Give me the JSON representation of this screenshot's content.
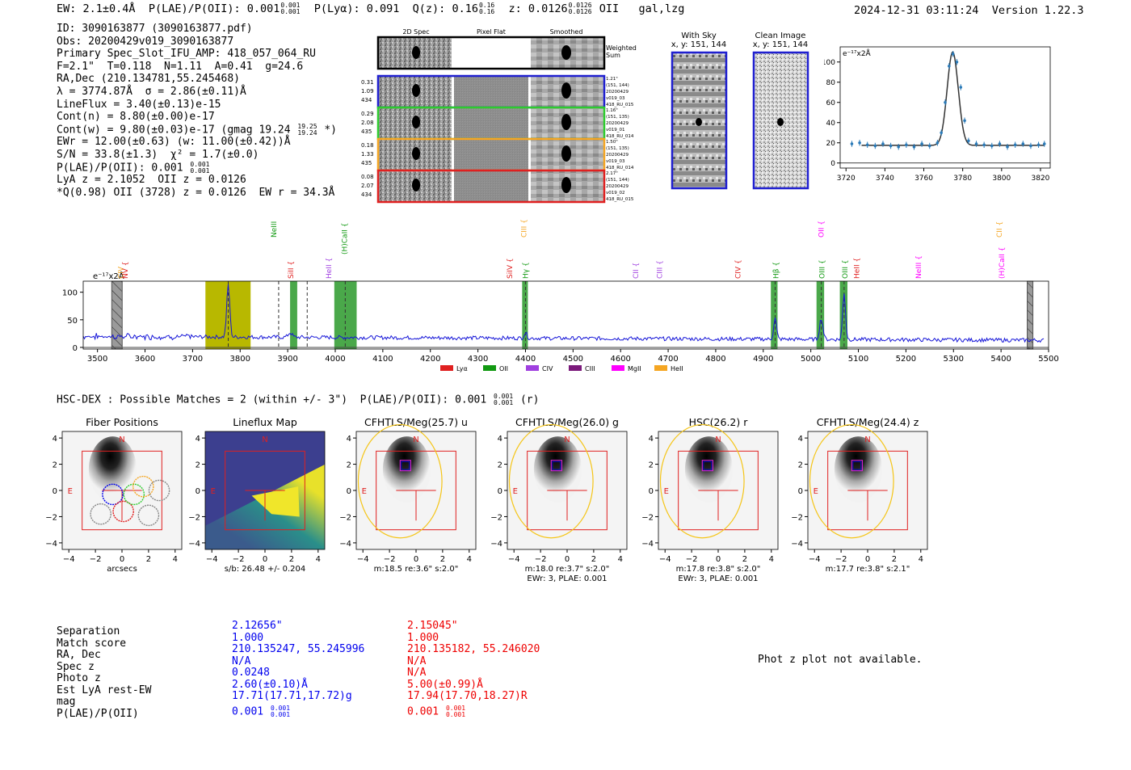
{
  "header": {
    "ew": "EW: 2.1±0.4Å",
    "plae_label": "P(LAE)/P(OII): 0.001",
    "plae_hi": "0.001",
    "plae_lo": "0.001",
    "plya": "P(Lyα): 0.091",
    "qz_label": "Q(z): 0.16",
    "qz_hi": "0.16",
    "qz_lo": "0.16",
    "z_label": "z: 0.0126",
    "z_hi": "0.0126",
    "z_lo": "0.0126",
    "z_line": "OII",
    "tags": "gal,lzg",
    "timestamp": "2024-12-31 03:11:24",
    "version": "Version 1.22.3"
  },
  "info": {
    "id": "ID: 3090163877 (3090163877.pdf)",
    "obs": "Obs: 20200429v019_3090163877",
    "slot": "Primary Spec_Slot_IFU_AMP: 418_057_064_RU",
    "fwhm": "F=2.1\"  T=0.118  N=1.11  A=0.41  g=24.6",
    "radec": "RA,Dec (210.134781,55.245468)",
    "lambda": "λ = 3774.87Å  σ = 2.86(±0.11)Å",
    "lineflux": "LineFlux = 3.40(±0.13)e-15",
    "contn": "Cont(n) = 8.80(±0.00)e-17",
    "contw": "Cont(w) = 9.80(±0.03)e-17 (gmag 19.24",
    "contw_hi": "19.25",
    "contw_lo": "19.24",
    "contw_end": "*)",
    "ewr": "EWr = 12.00(±0.63) (w: 11.00(±0.42))Å",
    "sn": "S/N = 33.8(±1.3)  χ² = 1.7(±0.0)",
    "plae": "P(LAE)/P(OII): 0.001",
    "plae_hi": "0.001",
    "plae_lo": "0.001",
    "lya": "LyA z = 2.1052  OII z = 0.0126",
    "q": "*Q(0.98) OII (3728) z = 0.0126  EW r = 34.3Å"
  },
  "cutouts": {
    "col_titles": [
      "2D Spec",
      "Pixel Flat",
      "Smoothed"
    ],
    "weighted_sum": "Weighted Sum",
    "rows": [
      {
        "left": [
          "0.31",
          "1.09",
          "434"
        ],
        "right": [
          "1.21\"",
          "(151, 144)",
          "20200429",
          "v019_03",
          "418_RU_015"
        ],
        "color": "#1f1fd0"
      },
      {
        "left": [
          "0.29",
          "2.08",
          "435"
        ],
        "right": [
          "1.16\"",
          "(151, 135)",
          "20200429",
          "v019_01",
          "418_RU_014"
        ],
        "color": "#2ecc2e"
      },
      {
        "left": [
          "0.18",
          "1.33",
          "435"
        ],
        "right": [
          "1.50\"",
          "(151, 135)",
          "20200429",
          "v019_03",
          "418_RU_014"
        ],
        "color": "#f5a623"
      },
      {
        "left": [
          "0.08",
          "2.07",
          "434"
        ],
        "right": [
          "2.17\"",
          "(151, 144)",
          "20200429",
          "v019_02",
          "418_RU_015"
        ],
        "color": "#e02020"
      }
    ],
    "with_sky_title": "With Sky",
    "with_sky_xy": "x, y: 151, 144",
    "clean_title": "Clean Image",
    "clean_xy": "x, y: 151, 144"
  },
  "line_fit": {
    "ylabel": "e⁻¹⁷x2Å",
    "xticks": [
      3720,
      3740,
      3760,
      3780,
      3800,
      3820
    ],
    "yticks": [
      0,
      20,
      40,
      60,
      80,
      100
    ],
    "xlim": [
      3717,
      3825
    ],
    "ylim": [
      -5,
      115
    ],
    "center": 3774.87,
    "sigma": 2.86,
    "peak": 110,
    "continuum": 17.5,
    "points_x": [
      3723,
      3727,
      3731,
      3735,
      3739,
      3743,
      3747,
      3751,
      3755,
      3759,
      3763,
      3767,
      3769,
      3771,
      3773,
      3775,
      3777,
      3779,
      3781,
      3783,
      3787,
      3791,
      3795,
      3799,
      3803,
      3807,
      3811,
      3815,
      3819,
      3822
    ],
    "points_y": [
      19,
      20,
      18,
      17,
      19,
      17,
      16,
      18,
      16,
      19,
      17,
      20,
      30,
      60,
      96,
      108,
      100,
      75,
      42,
      22,
      19,
      18,
      17,
      19,
      16,
      18,
      19,
      17,
      18,
      19
    ]
  },
  "spectrum": {
    "ylabel": "e⁻¹⁷x2Å",
    "xticks": [
      3500,
      3600,
      3700,
      3800,
      3900,
      4000,
      4100,
      4200,
      4300,
      4400,
      4500,
      4600,
      4700,
      4800,
      4900,
      5000,
      5100,
      5200,
      5300,
      5400,
      5500
    ],
    "yticks": [
      0,
      50,
      100
    ],
    "xlim": [
      3470,
      5500
    ],
    "ylim": [
      -3,
      120
    ],
    "lines": [
      {
        "label": "CIV",
        "x": 3547,
        "color": "#f5a623",
        "row": 2,
        "brace": false
      },
      {
        "label": "NV",
        "x": 3557,
        "color": "#e02020",
        "row": 2,
        "brace": true
      },
      {
        "label": "NeIII",
        "x": 3869,
        "color": "#119911",
        "row": 0,
        "brace": true
      },
      {
        "label": "SiII",
        "x": 3905,
        "color": "#e02020",
        "row": 2,
        "brace": true
      },
      {
        "label": "HeII",
        "x": 3985,
        "color": "#a040e0",
        "row": 2,
        "brace": true
      },
      {
        "label": "(H)CaII",
        "x": 4018,
        "color": "#119911",
        "row": 1,
        "brace": true
      },
      {
        "label": "SiIV",
        "x": 4365,
        "color": "#e02020",
        "row": 2,
        "brace": true
      },
      {
        "label": "CIII",
        "x": 4395,
        "color": "#f5a623",
        "row": 0,
        "brace": true
      },
      {
        "label": "Hγ",
        "x": 4398,
        "color": "#119911",
        "row": 2,
        "brace": true
      },
      {
        "label": "CII",
        "x": 4630,
        "color": "#a040e0",
        "row": 2,
        "brace": true
      },
      {
        "label": "CIII",
        "x": 4680,
        "color": "#a040e0",
        "row": 2,
        "brace": true
      },
      {
        "label": "CIV",
        "x": 4845,
        "color": "#e02020",
        "row": 2,
        "brace": true
      },
      {
        "label": "Hβ",
        "x": 4925,
        "color": "#119911",
        "row": 2,
        "brace": true
      },
      {
        "label": "OII",
        "x": 5020,
        "color": "#ff00ff",
        "row": 0,
        "brace": true
      },
      {
        "label": "OIII",
        "x": 5022,
        "color": "#119911",
        "row": 2,
        "brace": true
      },
      {
        "label": "OIII",
        "x": 5070,
        "color": "#119911",
        "row": 2,
        "brace": true
      },
      {
        "label": "HeII",
        "x": 5095,
        "color": "#e02020",
        "row": 2,
        "brace": true
      },
      {
        "label": "NeIII",
        "x": 5225,
        "color": "#ff00ff",
        "row": 2,
        "brace": true
      },
      {
        "label": "CII",
        "x": 5395,
        "color": "#f5a623",
        "row": 0,
        "brace": true
      },
      {
        "label": "(H)CaII",
        "x": 5400,
        "color": "#ff00ff",
        "row": 2,
        "brace": true
      }
    ],
    "bands": [
      {
        "x0": 3727,
        "x1": 3822,
        "color": "#b8b800"
      },
      {
        "x0": 3905,
        "x1": 3920,
        "color": "#4aa84a"
      },
      {
        "x0": 3998,
        "x1": 4045,
        "color": "#4aa84a"
      },
      {
        "x0": 4393,
        "x1": 4405,
        "color": "#4aa84a"
      },
      {
        "x0": 4916,
        "x1": 4930,
        "color": "#4aa84a"
      },
      {
        "x0": 5012,
        "x1": 5028,
        "color": "#4aa84a"
      },
      {
        "x0": 5061,
        "x1": 5077,
        "color": "#4aa84a"
      }
    ],
    "hatched": [
      {
        "x0": 3530,
        "x1": 3552
      },
      {
        "x0": 5455,
        "x1": 5467
      }
    ],
    "vlines": [
      3775,
      3881,
      3941,
      4021,
      4400,
      4925,
      5022,
      5070
    ],
    "legend": [
      {
        "label": "Lyα",
        "color": "#e02020"
      },
      {
        "label": "OII",
        "color": "#119911"
      },
      {
        "label": "CIV",
        "color": "#a040e0"
      },
      {
        "label": "CIII",
        "color": "#7b1a7b"
      },
      {
        "label": "MgII",
        "color": "#ff00ff"
      },
      {
        "label": "HeII",
        "color": "#f5a623"
      }
    ],
    "peaks": [
      {
        "x": 3775,
        "h": 95,
        "w": 3.2
      },
      {
        "x": 3905,
        "h": 8,
        "w": 4
      },
      {
        "x": 4400,
        "h": 10,
        "w": 3
      },
      {
        "x": 4925,
        "h": 38,
        "w": 3
      },
      {
        "x": 5022,
        "h": 38,
        "w": 3.5
      },
      {
        "x": 5070,
        "h": 85,
        "w": 3
      }
    ],
    "continuum": 20
  },
  "hsc": {
    "title": "HSC-DEX : Possible Matches = 2 (within +/- 3\")  P(LAE)/P(OII): 0.001",
    "plae_hi": "0.001",
    "plae_lo": "0.001",
    "band": "(r)",
    "panels": [
      {
        "title": "Fiber Positions",
        "caption1": "arcsecs",
        "caption2": ""
      },
      {
        "title": "Lineflux Map",
        "caption1": "s/b: 26.48 +/- 0.204",
        "caption2": ""
      },
      {
        "title": "CFHTLS/Meg(25.7) u",
        "caption1": "m:18.5  re:3.6\"  s:2.0\"",
        "caption2": ""
      },
      {
        "title": "CFHTLS/Meg(26.0) g",
        "caption1": "m:18.0  re:3.7\"  s:2.0\"",
        "caption2": "EWr: 3, PLAE: 0.001"
      },
      {
        "title": "HSC(26.2) r",
        "caption1": "m:17.8  re:3.8\"  s:2.0\"",
        "caption2": "EWr: 3, PLAE: 0.001"
      },
      {
        "title": "CFHTLS/Meg(24.4) z",
        "caption1": "m:17.7  re:3.8\"  s:2.1\"",
        "caption2": ""
      }
    ],
    "ticks": [
      -4,
      -2,
      0,
      2,
      4
    ],
    "north": "N",
    "east": "E"
  },
  "matches": {
    "labels": [
      "Separation",
      "Match score",
      "RA, Dec",
      "Spec z",
      "Photo z",
      "Est LyA rest-EW",
      "mag",
      "P(LAE)/P(OII)"
    ],
    "m1": {
      "color": "#0000ee",
      "vals": [
        "2.12656\"",
        "1.000",
        "210.135247, 55.245996",
        "N/A",
        "0.0248",
        "2.60(±0.10)Å",
        "17.71(17.71,17.72)g"
      ],
      "plae": "0.001",
      "plae_hi": "0.001",
      "plae_lo": "0.001"
    },
    "m2": {
      "color": "#ee0000",
      "vals": [
        "2.15045\"",
        "1.000",
        "210.135182, 55.246020",
        "N/A",
        "N/A",
        "5.00(±0.99)Å",
        "17.94(17.70,18.27)R"
      ],
      "plae": "0.001",
      "plae_hi": "0.001",
      "plae_lo": "0.001"
    }
  },
  "photz_msg": "Phot z plot not available."
}
